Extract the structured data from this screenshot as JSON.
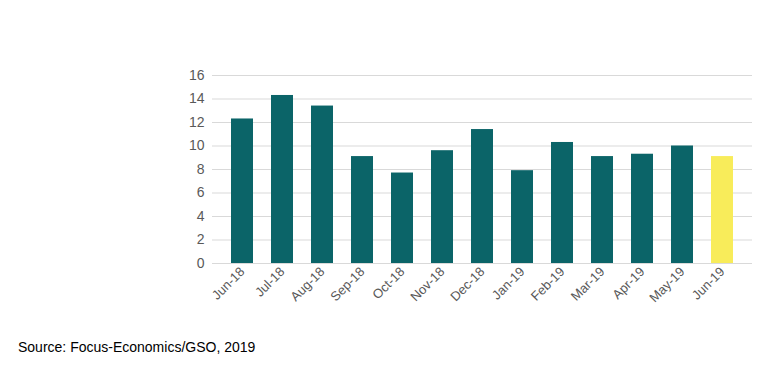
{
  "chart_data": {
    "type": "bar",
    "caption": "Source: Focus-Economics/GSO, 2019",
    "categories": [
      "Jun-18",
      "Jul-18",
      "Aug-18",
      "Sep-18",
      "Oct-18",
      "Nov-18",
      "Dec-18",
      "Jan-19",
      "Feb-19",
      "Mar-19",
      "Apr-19",
      "May-19",
      "Jun-19"
    ],
    "values": [
      12.3,
      14.3,
      13.4,
      9.1,
      7.7,
      9.6,
      11.4,
      7.9,
      10.3,
      9.1,
      9.3,
      10.0,
      9.1
    ],
    "colors": [
      "#0b6468",
      "#0b6468",
      "#0b6468",
      "#0b6468",
      "#0b6468",
      "#0b6468",
      "#0b6468",
      "#0b6468",
      "#0b6468",
      "#0b6468",
      "#0b6468",
      "#0b6468",
      "#f8ec5a"
    ],
    "ylim": [
      0,
      16
    ],
    "yticks": [
      0,
      2,
      4,
      6,
      8,
      10,
      12,
      14,
      16
    ],
    "grid": true
  }
}
